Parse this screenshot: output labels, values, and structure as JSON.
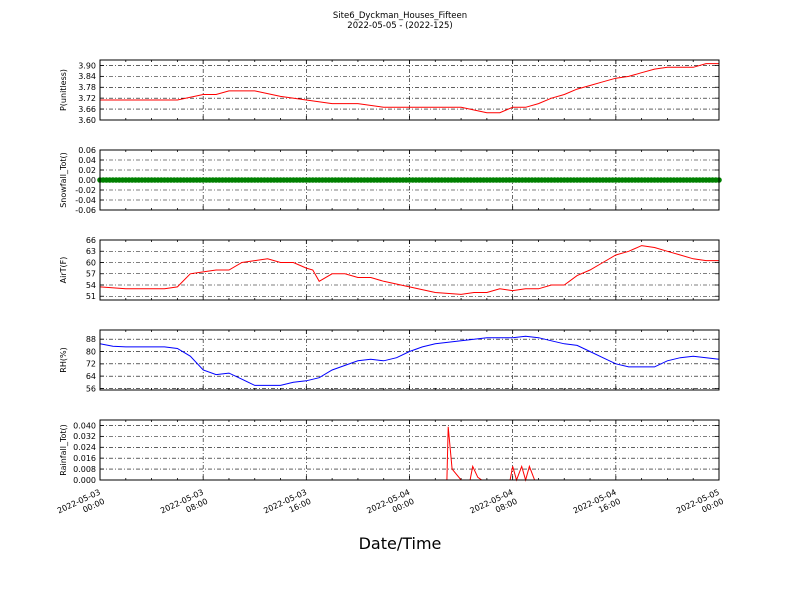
{
  "figure": {
    "title": "Site6_Dyckman_Houses_Fifteen",
    "subtitle": "2022-05-05 - (2022-125)",
    "xlabel": "Date/Time"
  },
  "chart_data": [
    {
      "type": "line",
      "ylabel": "P(unitless)",
      "color": "#ff0000",
      "ylim": [
        3.6,
        3.93
      ],
      "yticks": [
        "3.60",
        "3.66",
        "3.72",
        "3.78",
        "3.84",
        "3.90"
      ],
      "x_hours": [
        0,
        2,
        4,
        6,
        8,
        9,
        10,
        12,
        14,
        16,
        18,
        20,
        22,
        24,
        26,
        28,
        30,
        31,
        32,
        33,
        34,
        35,
        36,
        37,
        38,
        39,
        40,
        41,
        42,
        43,
        44,
        45,
        46,
        47,
        48
      ],
      "values": [
        3.71,
        3.71,
        3.71,
        3.71,
        3.74,
        3.74,
        3.76,
        3.76,
        3.73,
        3.71,
        3.69,
        3.69,
        3.67,
        3.67,
        3.67,
        3.67,
        3.64,
        3.64,
        3.67,
        3.67,
        3.69,
        3.72,
        3.74,
        3.77,
        3.79,
        3.81,
        3.83,
        3.84,
        3.86,
        3.88,
        3.89,
        3.89,
        3.89,
        3.91,
        3.91
      ],
      "grid": true
    },
    {
      "type": "scatter",
      "ylabel": "Snowfall_Tot()",
      "color": "#008000",
      "ylim": [
        -0.06,
        0.06
      ],
      "yticks": [
        "-0.06",
        "-0.04",
        "-0.02",
        "0.00",
        "0.02",
        "0.04",
        "0.06"
      ],
      "constant_value": 0.0,
      "x_range_hours": [
        0,
        48
      ],
      "grid": true
    },
    {
      "type": "line",
      "ylabel": "AirT(F)",
      "color": "#ff0000",
      "ylim": [
        50,
        66
      ],
      "yticks": [
        "51",
        "54",
        "57",
        "60",
        "63",
        "66"
      ],
      "x_hours": [
        0,
        2,
        4,
        5,
        6,
        7,
        8,
        9,
        10,
        11,
        12,
        13,
        14,
        15,
        16,
        16.5,
        17,
        18,
        19,
        20,
        21,
        22,
        24,
        26,
        28,
        29,
        30,
        31,
        32,
        33,
        34,
        35,
        36,
        37,
        38,
        39,
        40,
        41,
        42,
        43,
        44,
        45,
        46,
        47,
        48
      ],
      "values": [
        53.5,
        53,
        53,
        53,
        53.5,
        57,
        57.5,
        58,
        58,
        60,
        60.5,
        61,
        60,
        60,
        58.5,
        58,
        55,
        57,
        57,
        56,
        56,
        55,
        53.5,
        52,
        51.5,
        52,
        52,
        53,
        52.5,
        53,
        53,
        54,
        54,
        56.5,
        58,
        60,
        62,
        63,
        64.5,
        64,
        63,
        62,
        61,
        60.5,
        60.5
      ],
      "grid": true
    },
    {
      "type": "line",
      "ylabel": "RH(%)",
      "color": "#0000ff",
      "ylim": [
        55,
        94
      ],
      "yticks": [
        "56",
        "64",
        "72",
        "80",
        "88"
      ],
      "x_hours": [
        0,
        1,
        2,
        3,
        4,
        5,
        6,
        7,
        8,
        9,
        10,
        11,
        12,
        13,
        14,
        15,
        16,
        17,
        18,
        19,
        20,
        21,
        22,
        23,
        24,
        25,
        26,
        27,
        28,
        29,
        30,
        31,
        32,
        33,
        34,
        35,
        36,
        37,
        38,
        39,
        40,
        41,
        42,
        43,
        44,
        45,
        46,
        47,
        48
      ],
      "values": [
        85,
        83.5,
        83,
        83,
        83,
        83,
        82,
        77,
        68,
        65,
        66,
        62,
        58,
        58,
        58,
        60,
        61,
        63,
        68,
        71,
        74,
        75,
        74,
        76,
        80,
        83,
        85,
        86,
        87,
        88,
        89,
        89,
        89,
        90,
        89,
        87,
        85,
        84,
        80,
        76,
        72,
        70,
        70,
        70,
        74,
        76,
        77,
        76,
        75
      ],
      "grid": true
    },
    {
      "type": "line",
      "ylabel": "Rainfall_Tot()",
      "color": "#ff0000",
      "ylim": [
        0,
        0.044
      ],
      "yticks": [
        "0.000",
        "0.008",
        "0.016",
        "0.024",
        "0.032",
        "0.040"
      ],
      "x_hours": [
        0,
        26.9,
        27.0,
        27.3,
        28.0,
        28.7,
        28.9,
        29.3,
        29.6,
        30.0,
        31.8,
        32.0,
        32.3,
        32.7,
        33.0,
        33.3,
        33.7,
        48
      ],
      "values": [
        0,
        0,
        0.039,
        0.008,
        0,
        0,
        0.01,
        0.002,
        0,
        0,
        0,
        0.01,
        0,
        0.01,
        0,
        0.01,
        0,
        0
      ],
      "grid": true
    }
  ],
  "x_axis": {
    "range_hours": [
      0,
      48
    ],
    "tick_hours": [
      0,
      8,
      16,
      24,
      32,
      40,
      48
    ],
    "tick_labels": [
      [
        "2022-05-03",
        "00:00"
      ],
      [
        "2022-05-03",
        "08:00"
      ],
      [
        "2022-05-03",
        "16:00"
      ],
      [
        "2022-05-04",
        "00:00"
      ],
      [
        "2022-05-04",
        "08:00"
      ],
      [
        "2022-05-04",
        "16:00"
      ],
      [
        "2022-05-05",
        "00:00"
      ]
    ]
  }
}
